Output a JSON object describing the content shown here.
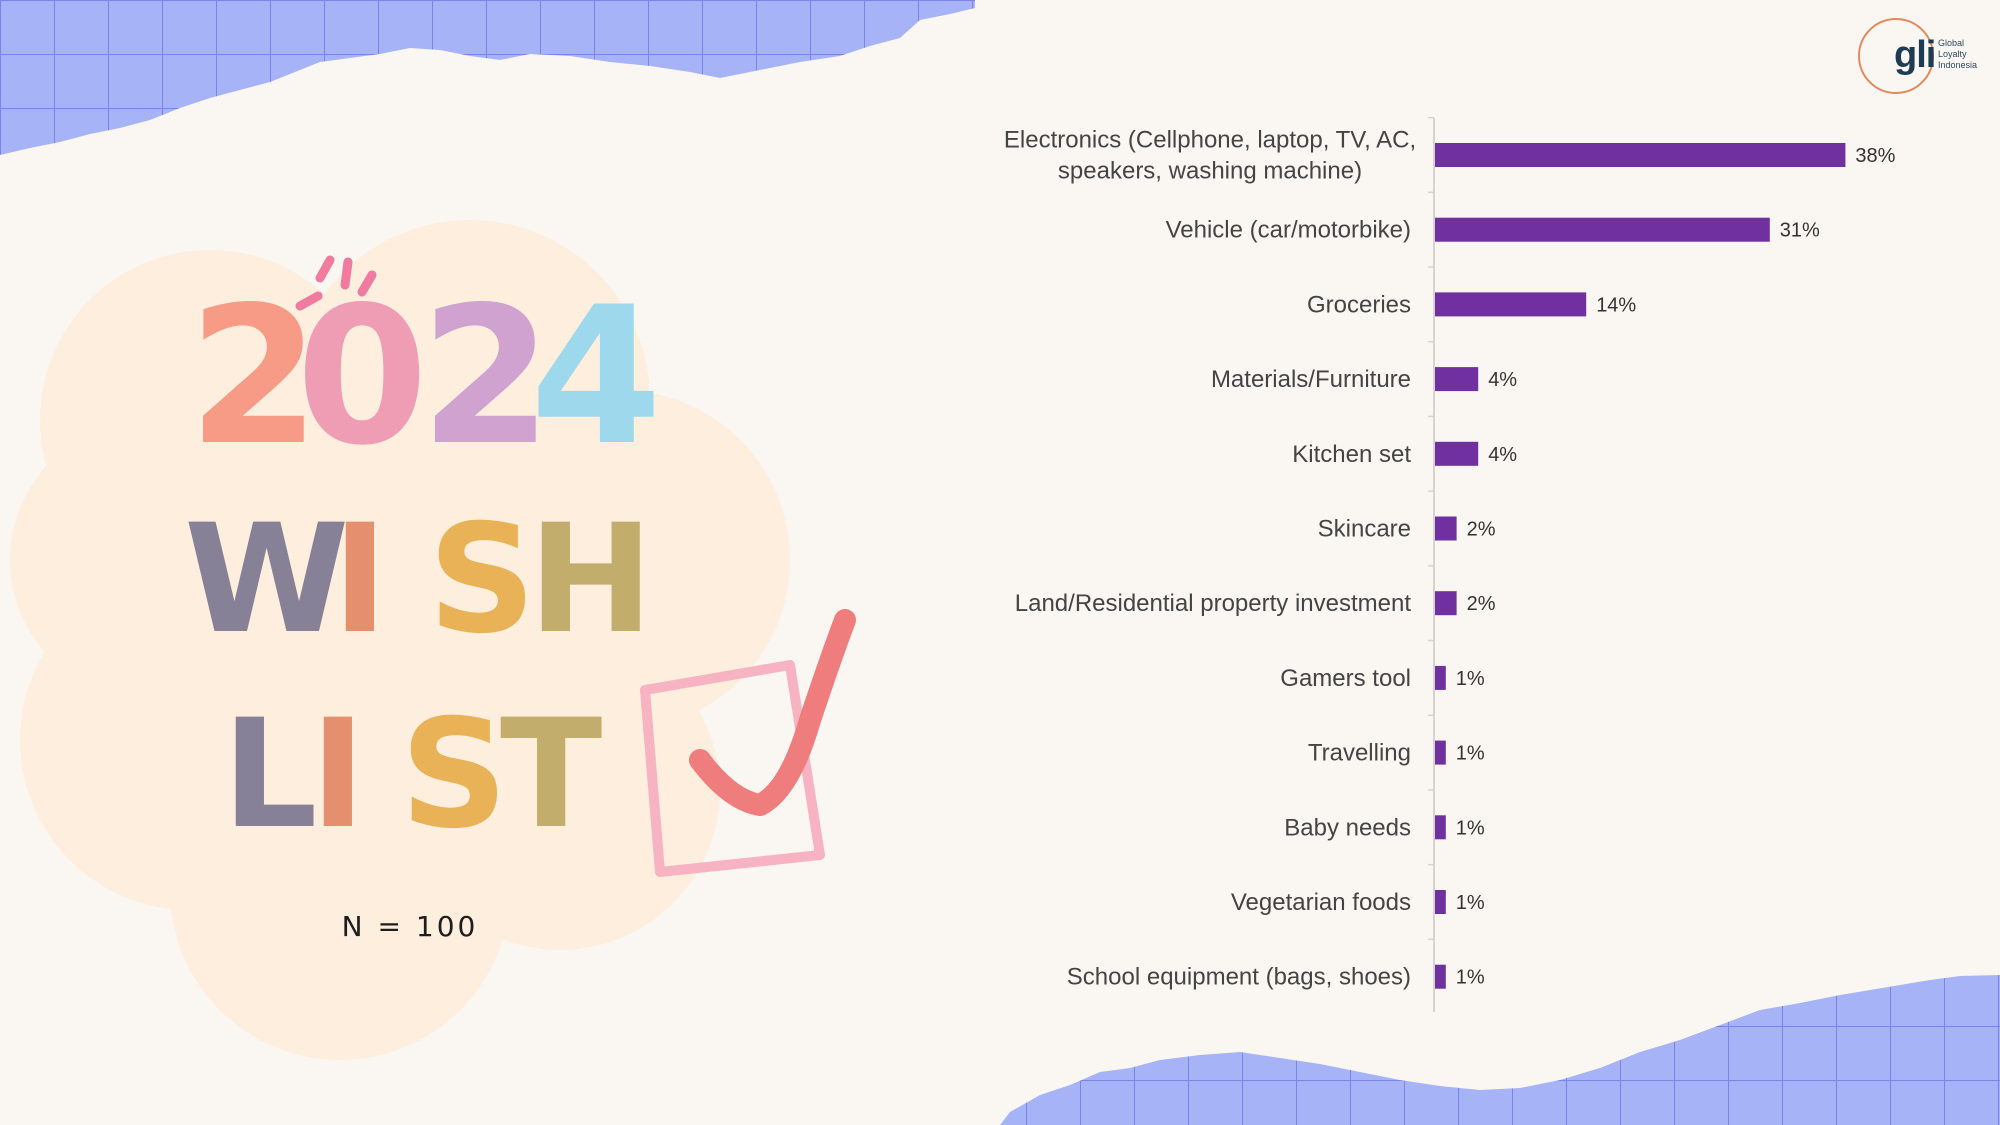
{
  "title": {
    "year_digits": [
      "2",
      "0",
      "2",
      "4"
    ],
    "line1_letters": [
      "W",
      "I",
      "S",
      "H"
    ],
    "line2_letters": [
      "L",
      "I",
      "S",
      "T"
    ]
  },
  "sample_size": "N = 100",
  "logo": {
    "mark": "gli",
    "text_lines": [
      "Global",
      "Loyalty",
      "Indonesia"
    ]
  },
  "colors": {
    "bar": "#7030a0",
    "grid_band": "#a6b4f7",
    "grid_line": "#7b83e6",
    "checkmark": "#f07d7d",
    "checkbox": "#f7b3c2"
  },
  "chart_data": {
    "type": "bar",
    "orientation": "horizontal",
    "categories": [
      [
        "Electronics (Cellphone, laptop, TV, AC,",
        "speakers, washing machine)"
      ],
      [
        "Vehicle (car/motorbike)"
      ],
      [
        "Groceries"
      ],
      [
        "Materials/Furniture"
      ],
      [
        "Kitchen set"
      ],
      [
        "Skincare"
      ],
      [
        "Land/Residential property investment"
      ],
      [
        "Gamers tool"
      ],
      [
        "Travelling"
      ],
      [
        "Baby needs"
      ],
      [
        "Vegetarian foods"
      ],
      [
        "School equipment (bags, shoes)"
      ]
    ],
    "values": [
      38,
      31,
      14,
      4,
      4,
      2,
      2,
      1,
      1,
      1,
      1,
      1
    ],
    "value_labels": [
      "38%",
      "31%",
      "14%",
      "4%",
      "4%",
      "2%",
      "2%",
      "1%",
      "1%",
      "1%",
      "1%",
      "1%"
    ],
    "unit": "%",
    "xlim": [
      0,
      40
    ]
  }
}
